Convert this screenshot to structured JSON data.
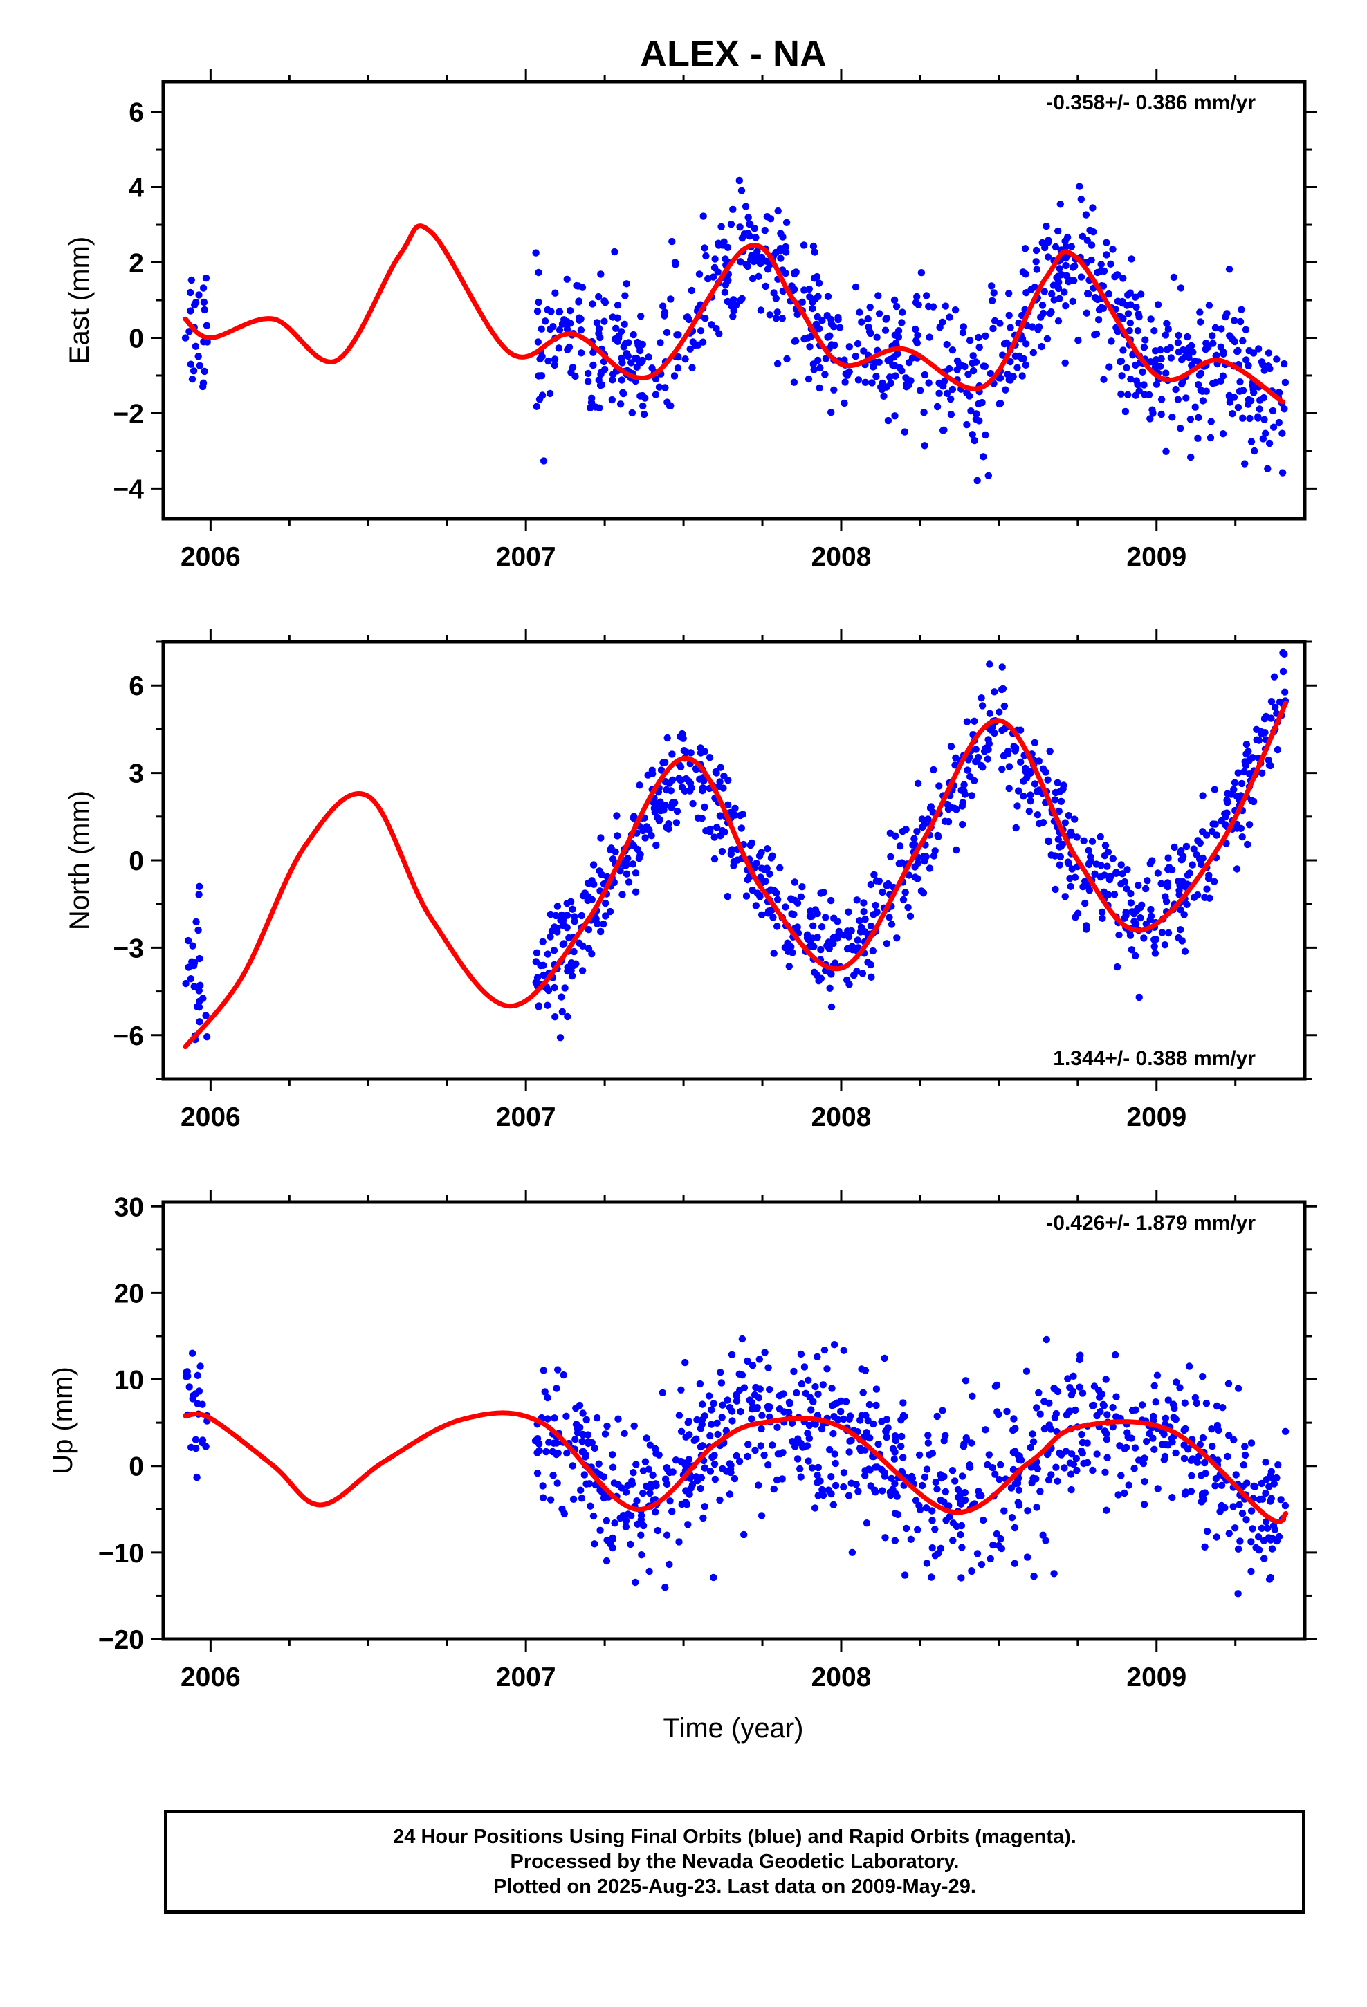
{
  "chart_data": {
    "title": "ALEX - NA",
    "xlabel": "Time (year)",
    "xlim": [
      2005.85,
      2009.47
    ],
    "xticks": [
      2006,
      2007,
      2008,
      2009
    ],
    "colors": {
      "observed": "#0000ff",
      "model": "#ff0000",
      "frame": "#000000"
    },
    "panels": [
      {
        "type": "scatter",
        "name": "east",
        "ylabel": "East (mm)",
        "ylim": [
          -4.8,
          6.8
        ],
        "yticks": [
          -4,
          -2,
          0,
          2,
          4,
          6
        ],
        "rate_label": "-0.358+/- 0.386 mm/yr",
        "rate_position": "top-right",
        "model_curve": [
          [
            2005.92,
            0.5
          ],
          [
            2006.0,
            0.0
          ],
          [
            2006.2,
            0.5
          ],
          [
            2006.4,
            -0.6
          ],
          [
            2006.6,
            2.2
          ],
          [
            2006.7,
            2.8
          ],
          [
            2006.95,
            -0.4
          ],
          [
            2007.15,
            0.1
          ],
          [
            2007.4,
            -1.0
          ],
          [
            2007.7,
            2.4
          ],
          [
            2007.85,
            1.0
          ],
          [
            2008.0,
            -0.7
          ],
          [
            2008.2,
            -0.3
          ],
          [
            2008.45,
            -1.3
          ],
          [
            2008.65,
            1.6
          ],
          [
            2008.75,
            2.1
          ],
          [
            2009.0,
            -1.0
          ],
          [
            2009.2,
            -0.6
          ],
          [
            2009.4,
            -1.7
          ]
        ],
        "segments": [
          {
            "start": 2005.92,
            "end": 2005.99,
            "mean": 0.3,
            "amp": 0.3,
            "phase": 0.0,
            "spread": 1.0,
            "count": 25
          },
          {
            "start": 2007.03,
            "end": 2009.41,
            "mean": 0.0,
            "amp": 1.6,
            "phase": 1.2,
            "spread": 0.9,
            "count": 900
          }
        ]
      },
      {
        "type": "scatter",
        "name": "north",
        "ylabel": "North (mm)",
        "ylim": [
          -7.5,
          7.5
        ],
        "yticks": [
          -6,
          -3,
          0,
          3,
          6
        ],
        "rate_label": "1.344+/- 0.388 mm/yr",
        "rate_position": "bottom-right",
        "model_curve": [
          [
            2005.92,
            -6.4
          ],
          [
            2006.1,
            -4.0
          ],
          [
            2006.3,
            0.5
          ],
          [
            2006.5,
            2.2
          ],
          [
            2006.7,
            -2.0
          ],
          [
            2006.95,
            -5.0
          ],
          [
            2007.2,
            -2.0
          ],
          [
            2007.5,
            3.5
          ],
          [
            2007.75,
            -1.0
          ],
          [
            2008.0,
            -3.7
          ],
          [
            2008.25,
            0.5
          ],
          [
            2008.5,
            4.8
          ],
          [
            2008.75,
            0.0
          ],
          [
            2008.95,
            -2.4
          ],
          [
            2009.2,
            0.5
          ],
          [
            2009.41,
            5.4
          ]
        ],
        "segments": [
          {
            "start": 2005.92,
            "end": 2005.99,
            "mean": -4.0,
            "amp": 1.5,
            "phase": 0.0,
            "spread": 1.3,
            "count": 25
          },
          {
            "start": 2007.03,
            "end": 2009.41,
            "mean": 0.8,
            "amp": 4.2,
            "phase": 0.0,
            "spread": 0.9,
            "count": 900
          }
        ]
      },
      {
        "type": "scatter",
        "name": "up",
        "ylabel": "Up (mm)",
        "ylim": [
          -20,
          30.5
        ],
        "yticks": [
          -20,
          -10,
          0,
          10,
          20,
          30
        ],
        "rate_label": "-0.426+/- 1.879 mm/yr",
        "rate_position": "top-right",
        "model_curve": [
          [
            2005.92,
            5.8
          ],
          [
            2006.0,
            5.5
          ],
          [
            2006.2,
            0.0
          ],
          [
            2006.35,
            -4.5
          ],
          [
            2006.55,
            0.5
          ],
          [
            2006.8,
            5.4
          ],
          [
            2007.05,
            5.0
          ],
          [
            2007.35,
            -5.0
          ],
          [
            2007.6,
            2.5
          ],
          [
            2007.75,
            5.0
          ],
          [
            2008.0,
            4.5
          ],
          [
            2008.35,
            -5.3
          ],
          [
            2008.6,
            0.5
          ],
          [
            2008.75,
            4.5
          ],
          [
            2009.05,
            4.0
          ],
          [
            2009.35,
            -5.8
          ],
          [
            2009.41,
            -5.5
          ]
        ],
        "segments": [
          {
            "start": 2005.92,
            "end": 2005.99,
            "mean": 7.0,
            "amp": 2.0,
            "phase": 0.0,
            "spread": 4.0,
            "count": 25
          },
          {
            "start": 2007.03,
            "end": 2009.41,
            "mean": 1.0,
            "amp": 5.5,
            "phase": 0.0,
            "spread": 4.5,
            "count": 900
          }
        ]
      }
    ]
  },
  "footer": {
    "line1": "24 Hour Positions Using Final Orbits (blue) and Rapid Orbits (magenta).",
    "line2": "Processed by the Nevada Geodetic Laboratory.",
    "line3": "Plotted on 2025-Aug-23. Last data on 2009-May-29."
  }
}
